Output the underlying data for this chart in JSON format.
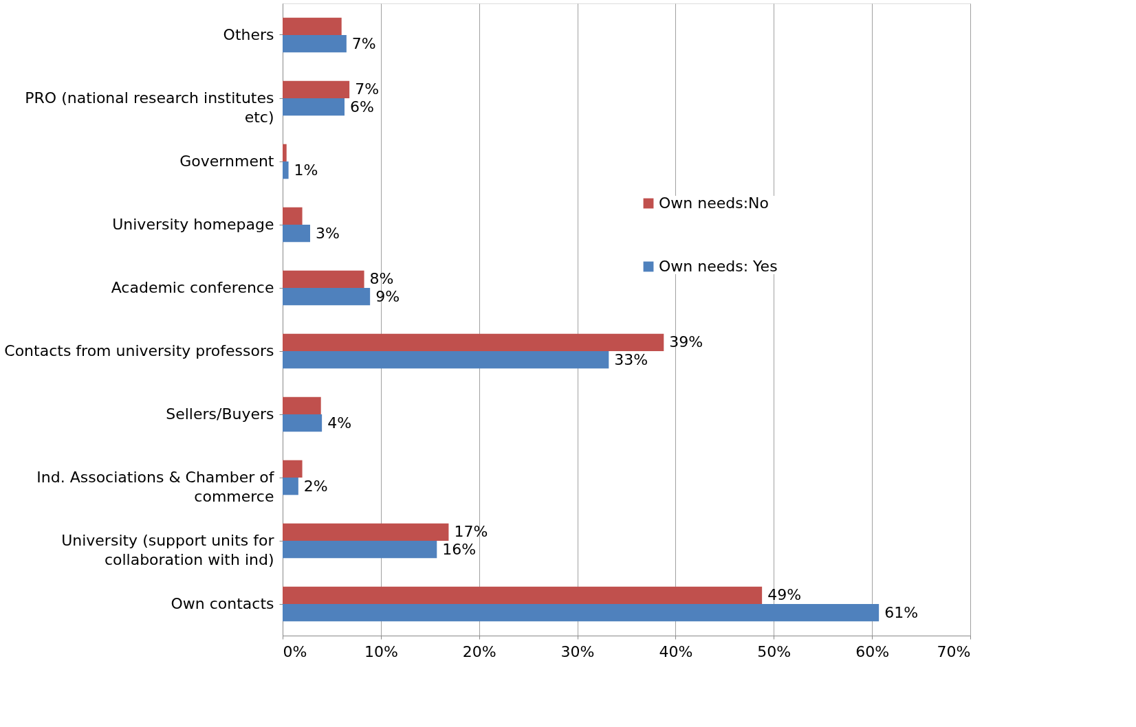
{
  "chart_data": {
    "type": "bar",
    "orientation": "horizontal",
    "categories": [
      "Others",
      "PRO (national research institutes\netc)",
      "Government",
      "University homepage",
      "Academic conference",
      "Contacts from university professors",
      "Sellers/Buyers",
      "Ind. Associations & Chamber of\ncommerce",
      "University (support units for\ncollaboration with ind)",
      "Own contacts"
    ],
    "series": [
      {
        "name": "Own needs:No",
        "color": "#c0504d",
        "values": [
          6.0,
          6.8,
          0.4,
          2.0,
          8.3,
          38.8,
          3.9,
          2.0,
          16.9,
          48.8
        ],
        "value_labels": [
          null,
          "7%",
          null,
          null,
          "8%",
          "39%",
          null,
          null,
          "17%",
          "49%"
        ]
      },
      {
        "name": "Own needs: Yes",
        "color": "#4f81bd",
        "values": [
          6.5,
          6.3,
          0.6,
          2.8,
          8.9,
          33.2,
          4.0,
          1.6,
          15.7,
          60.7
        ],
        "value_labels": [
          "7%",
          "6%",
          "1%",
          "3%",
          "9%",
          "33%",
          "4%",
          "2%",
          "16%",
          "61%"
        ]
      }
    ],
    "xlim": [
      0,
      70
    ],
    "xticks": [
      {
        "value": 0,
        "label": "0%"
      },
      {
        "value": 10,
        "label": "10%"
      },
      {
        "value": 20,
        "label": "20%"
      },
      {
        "value": 30,
        "label": "30%"
      },
      {
        "value": 40,
        "label": "40%"
      },
      {
        "value": 50,
        "label": "50%"
      },
      {
        "value": 60,
        "label": "60%"
      },
      {
        "value": 70,
        "label": "70%"
      }
    ],
    "grid": "x",
    "legend": "top right"
  }
}
